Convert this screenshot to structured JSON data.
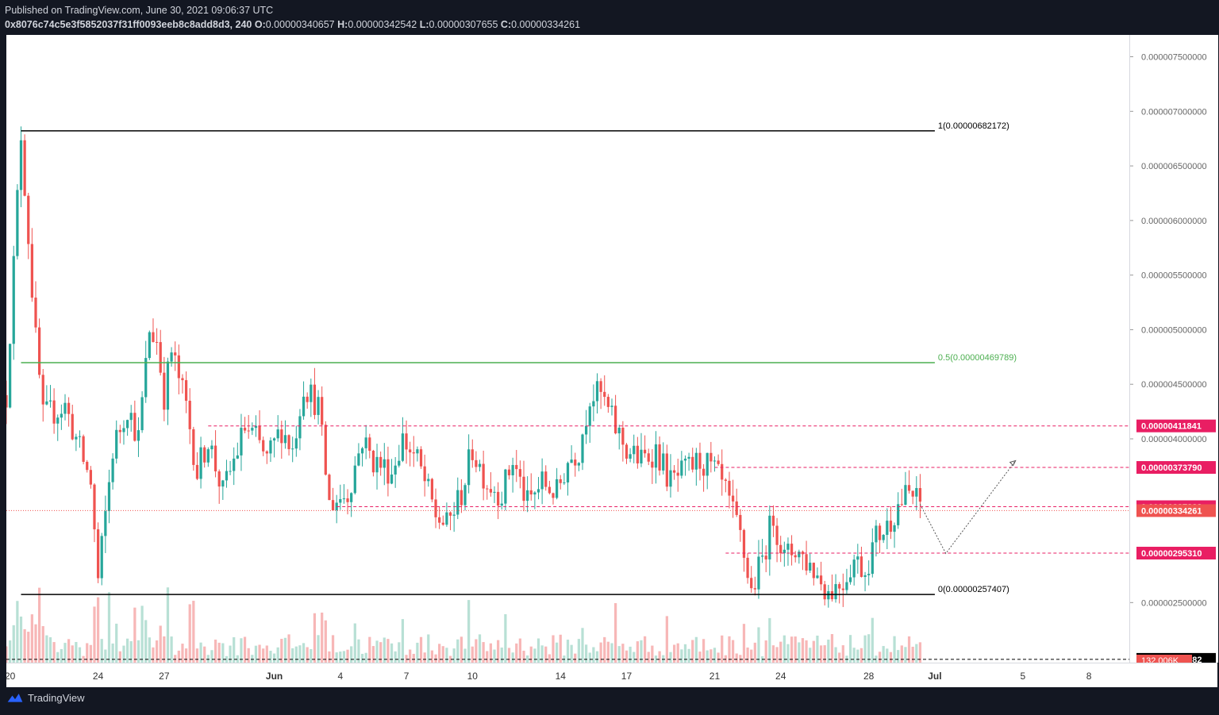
{
  "header": {
    "published": "Published on TradingView.com, June 30, 2021 09:06:37 UTC",
    "symbol": "0x8076c74c5e3f5852037f31ff0093eeb8c8add8d3, 240",
    "o_label": "O:",
    "o_value": "0.00000340657",
    "h_label": "H:",
    "h_value": "0.00000342542",
    "l_label": "L:",
    "l_value": "0.00000307655",
    "c_label": "C:",
    "c_value": "0.00000334261"
  },
  "footer": {
    "brand": "TradingView",
    "logo_icon": "tradingview-logo-icon"
  },
  "colors": {
    "up": "#26a69a",
    "down": "#ef5350",
    "fib_half": "#4caf50",
    "level": "#e91e63",
    "volume_up": "#b8e0d5",
    "volume_down": "#f7b7b7"
  },
  "chart_data": {
    "type": "candlestick",
    "interval": "240",
    "y_range": [
      1.95e-06,
      7.7e-06
    ],
    "y_ticks": [
      {
        "value": 7.5e-06,
        "label": "0.000007500000"
      },
      {
        "value": 7e-06,
        "label": "0.000007000000"
      },
      {
        "value": 6.5e-06,
        "label": "0.000006500000"
      },
      {
        "value": 6e-06,
        "label": "0.000006000000"
      },
      {
        "value": 5.5e-06,
        "label": "0.000005500000"
      },
      {
        "value": 5e-06,
        "label": "0.000005000000"
      },
      {
        "value": 4.5e-06,
        "label": "0.000004500000"
      },
      {
        "value": 4e-06,
        "label": "0.000004000000"
      },
      {
        "value": 2.5e-06,
        "label": "0.000002500000"
      }
    ],
    "x_range": [
      "2021-05-19T20:00",
      "2021-07-09T20:00"
    ],
    "x_ticks": [
      {
        "date": "2021-05-20",
        "label": "20"
      },
      {
        "date": "2021-05-24",
        "label": "24"
      },
      {
        "date": "2021-05-27",
        "label": "27"
      },
      {
        "date": "2021-06-01",
        "label": "Jun"
      },
      {
        "date": "2021-06-04",
        "label": "4"
      },
      {
        "date": "2021-06-07",
        "label": "7"
      },
      {
        "date": "2021-06-10",
        "label": "10"
      },
      {
        "date": "2021-06-14",
        "label": "14"
      },
      {
        "date": "2021-06-17",
        "label": "17"
      },
      {
        "date": "2021-06-21",
        "label": "21"
      },
      {
        "date": "2021-06-24",
        "label": "24"
      },
      {
        "date": "2021-06-28",
        "label": "28"
      },
      {
        "date": "2021-07-01",
        "label": "Jul"
      },
      {
        "date": "2021-07-05",
        "label": "5"
      },
      {
        "date": "2021-07-08",
        "label": "8"
      }
    ],
    "fib_levels": [
      {
        "ratio": 1,
        "label": "1(0.00000682172)",
        "price": 6.82172e-06,
        "start": "2021-05-20T12:00",
        "end": "2021-07-01T00:00",
        "color": "#000000"
      },
      {
        "ratio": 0.5,
        "label": "0.5(0.00000469789)",
        "price": 4.69789e-06,
        "start": "2021-05-20T12:00",
        "end": "2021-07-01T00:00",
        "color": "#4caf50"
      },
      {
        "ratio": 0,
        "label": "0(0.00000257407)",
        "price": 2.57407e-06,
        "start": "2021-05-20T12:00",
        "end": "2021-07-01T00:00",
        "color": "#000000"
      }
    ],
    "levels": [
      {
        "price": 4.11841e-06,
        "label": "0.00000411841",
        "start": "2021-05-29T00:00",
        "style": "dashed",
        "color": "#e91e63"
      },
      {
        "price": 3.7379e-06,
        "label": "0.00000373790",
        "start": "2021-06-21T00:00",
        "style": "dashed",
        "color": "#e91e63"
      },
      {
        "price": 3.37828e-06,
        "label": "0.00000337828",
        "start": "2021-06-03T20:00",
        "style": "dashed",
        "color": "#e91e63"
      },
      {
        "price": 2.9531e-06,
        "label": "0.00000295310",
        "start": "2021-06-21T12:00",
        "style": "dashed",
        "color": "#e91e63"
      },
      {
        "price": 1.97982e-06,
        "label": "0.00000197982",
        "start": "2021-05-19T20:00",
        "style": "dashed",
        "color": "#000000"
      }
    ],
    "last_price": {
      "price": 3.34261e-06,
      "label": "0.00000334261"
    },
    "volume_label": "132.006K",
    "projection": [
      {
        "date": "2021-06-30T08:00",
        "price": 3.4e-06
      },
      {
        "date": "2021-07-01T12:00",
        "price": 2.95e-06
      },
      {
        "date": "2021-07-04T16:00",
        "price": 3.8e-06
      }
    ],
    "anchors": [
      {
        "date": "2021-05-19T20:00",
        "price": 4.4e-06
      },
      {
        "date": "2021-05-20T12:00",
        "price": 6.8e-06
      },
      {
        "date": "2021-05-21T04:00",
        "price": 4.9e-06
      },
      {
        "date": "2021-05-21T12:00",
        "price": 4.2e-06
      },
      {
        "date": "2021-05-22T12:00",
        "price": 4.3e-06
      },
      {
        "date": "2021-05-23T00:00",
        "price": 4e-06
      },
      {
        "date": "2021-05-23T16:00",
        "price": 3.6e-06
      },
      {
        "date": "2021-05-24T00:00",
        "price": 2.7e-06
      },
      {
        "date": "2021-05-24T16:00",
        "price": 3.9e-06
      },
      {
        "date": "2021-05-25T08:00",
        "price": 4.3e-06
      },
      {
        "date": "2021-05-25T20:00",
        "price": 4e-06
      },
      {
        "date": "2021-05-26T08:00",
        "price": 5e-06
      },
      {
        "date": "2021-05-26T16:00",
        "price": 4.9e-06
      },
      {
        "date": "2021-05-27T00:00",
        "price": 4.4e-06
      },
      {
        "date": "2021-05-27T08:00",
        "price": 4.8e-06
      },
      {
        "date": "2021-05-28T00:00",
        "price": 4.3e-06
      },
      {
        "date": "2021-05-28T12:00",
        "price": 3.7e-06
      },
      {
        "date": "2021-05-29T00:00",
        "price": 4e-06
      },
      {
        "date": "2021-05-29T16:00",
        "price": 3.5e-06
      },
      {
        "date": "2021-05-30T04:00",
        "price": 3.8e-06
      },
      {
        "date": "2021-05-30T16:00",
        "price": 4.1e-06
      },
      {
        "date": "2021-05-31T04:00",
        "price": 4e-06
      },
      {
        "date": "2021-05-31T16:00",
        "price": 3.8e-06
      },
      {
        "date": "2021-06-01T08:00",
        "price": 4.1e-06
      },
      {
        "date": "2021-06-01T20:00",
        "price": 3.9e-06
      },
      {
        "date": "2021-06-02T08:00",
        "price": 4.5e-06
      },
      {
        "date": "2021-06-03T00:00",
        "price": 4.3e-06
      },
      {
        "date": "2021-06-03T12:00",
        "price": 3.4e-06
      },
      {
        "date": "2021-06-04T08:00",
        "price": 3.5e-06
      },
      {
        "date": "2021-06-05T00:00",
        "price": 4e-06
      },
      {
        "date": "2021-06-05T12:00",
        "price": 3.8e-06
      },
      {
        "date": "2021-06-06T08:00",
        "price": 3.7e-06
      },
      {
        "date": "2021-06-06T20:00",
        "price": 4e-06
      },
      {
        "date": "2021-06-07T12:00",
        "price": 3.8e-06
      },
      {
        "date": "2021-06-08T08:00",
        "price": 3.3e-06
      },
      {
        "date": "2021-06-08T20:00",
        "price": 3.2e-06
      },
      {
        "date": "2021-06-09T12:00",
        "price": 3.5e-06
      },
      {
        "date": "2021-06-10T00:00",
        "price": 3.9e-06
      },
      {
        "date": "2021-06-10T16:00",
        "price": 3.6e-06
      },
      {
        "date": "2021-06-11T08:00",
        "price": 3.5e-06
      },
      {
        "date": "2021-06-11T20:00",
        "price": 3.8e-06
      },
      {
        "date": "2021-06-12T12:00",
        "price": 3.4e-06
      },
      {
        "date": "2021-06-13T04:00",
        "price": 3.6e-06
      },
      {
        "date": "2021-06-13T20:00",
        "price": 3.5e-06
      },
      {
        "date": "2021-06-14T08:00",
        "price": 3.8e-06
      },
      {
        "date": "2021-06-14T20:00",
        "price": 3.9e-06
      },
      {
        "date": "2021-06-15T08:00",
        "price": 4.4e-06
      },
      {
        "date": "2021-06-15T20:00",
        "price": 4.4e-06
      },
      {
        "date": "2021-06-16T12:00",
        "price": 4.1e-06
      },
      {
        "date": "2021-06-17T00:00",
        "price": 3.9e-06
      },
      {
        "date": "2021-06-17T16:00",
        "price": 3.8e-06
      },
      {
        "date": "2021-06-18T08:00",
        "price": 3.9e-06
      },
      {
        "date": "2021-06-19T00:00",
        "price": 3.6e-06
      },
      {
        "date": "2021-06-19T16:00",
        "price": 3.7e-06
      },
      {
        "date": "2021-06-20T08:00",
        "price": 3.8e-06
      },
      {
        "date": "2021-06-21T00:00",
        "price": 3.7e-06
      },
      {
        "date": "2021-06-21T12:00",
        "price": 3.5e-06
      },
      {
        "date": "2021-06-22T04:00",
        "price": 3.1e-06
      },
      {
        "date": "2021-06-22T16:00",
        "price": 2.6e-06
      },
      {
        "date": "2021-06-23T04:00",
        "price": 2.9e-06
      },
      {
        "date": "2021-06-23T16:00",
        "price": 3.3e-06
      },
      {
        "date": "2021-06-24T04:00",
        "price": 2.9e-06
      },
      {
        "date": "2021-06-24T16:00",
        "price": 3e-06
      },
      {
        "date": "2021-06-25T12:00",
        "price": 2.8e-06
      },
      {
        "date": "2021-06-26T04:00",
        "price": 2.6e-06
      },
      {
        "date": "2021-06-26T20:00",
        "price": 2.7e-06
      },
      {
        "date": "2021-06-27T08:00",
        "price": 2.9e-06
      },
      {
        "date": "2021-06-27T20:00",
        "price": 2.8e-06
      },
      {
        "date": "2021-06-28T08:00",
        "price": 3.1e-06
      },
      {
        "date": "2021-06-28T20:00",
        "price": 3.2e-06
      },
      {
        "date": "2021-06-29T08:00",
        "price": 3.4e-06
      },
      {
        "date": "2021-06-29T20:00",
        "price": 3.5e-06
      },
      {
        "date": "2021-06-30T08:00",
        "price": 3.4e-06
      }
    ]
  }
}
